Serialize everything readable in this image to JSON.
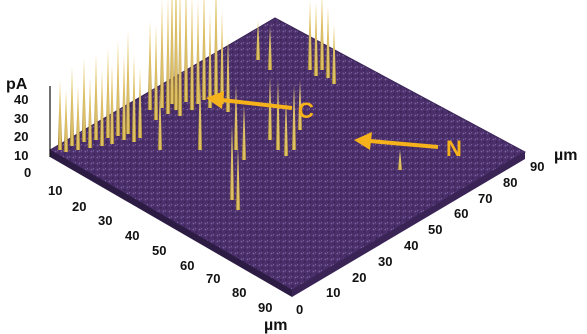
{
  "figure": {
    "z_axis": {
      "unit": "pA",
      "ticks": [
        "10",
        "20",
        "30",
        "40"
      ]
    },
    "left_axis": {
      "unit": "µm",
      "ticks": [
        "0",
        "10",
        "20",
        "30",
        "40",
        "50",
        "60",
        "70",
        "80",
        "90"
      ]
    },
    "right_axis": {
      "unit": "µm",
      "ticks": [
        "0",
        "10",
        "20",
        "30",
        "40",
        "50",
        "60",
        "70",
        "80",
        "90"
      ]
    },
    "annotations": [
      {
        "label": "C"
      },
      {
        "label": "N"
      }
    ],
    "colors": {
      "surface_dark": "#3a2456",
      "surface_mid": "#5b3f7e",
      "surface_light": "#8c74ad",
      "peak": "#c9a032",
      "peak_highlight": "#f2d67a",
      "arrow": "#f6b21a"
    }
  }
}
